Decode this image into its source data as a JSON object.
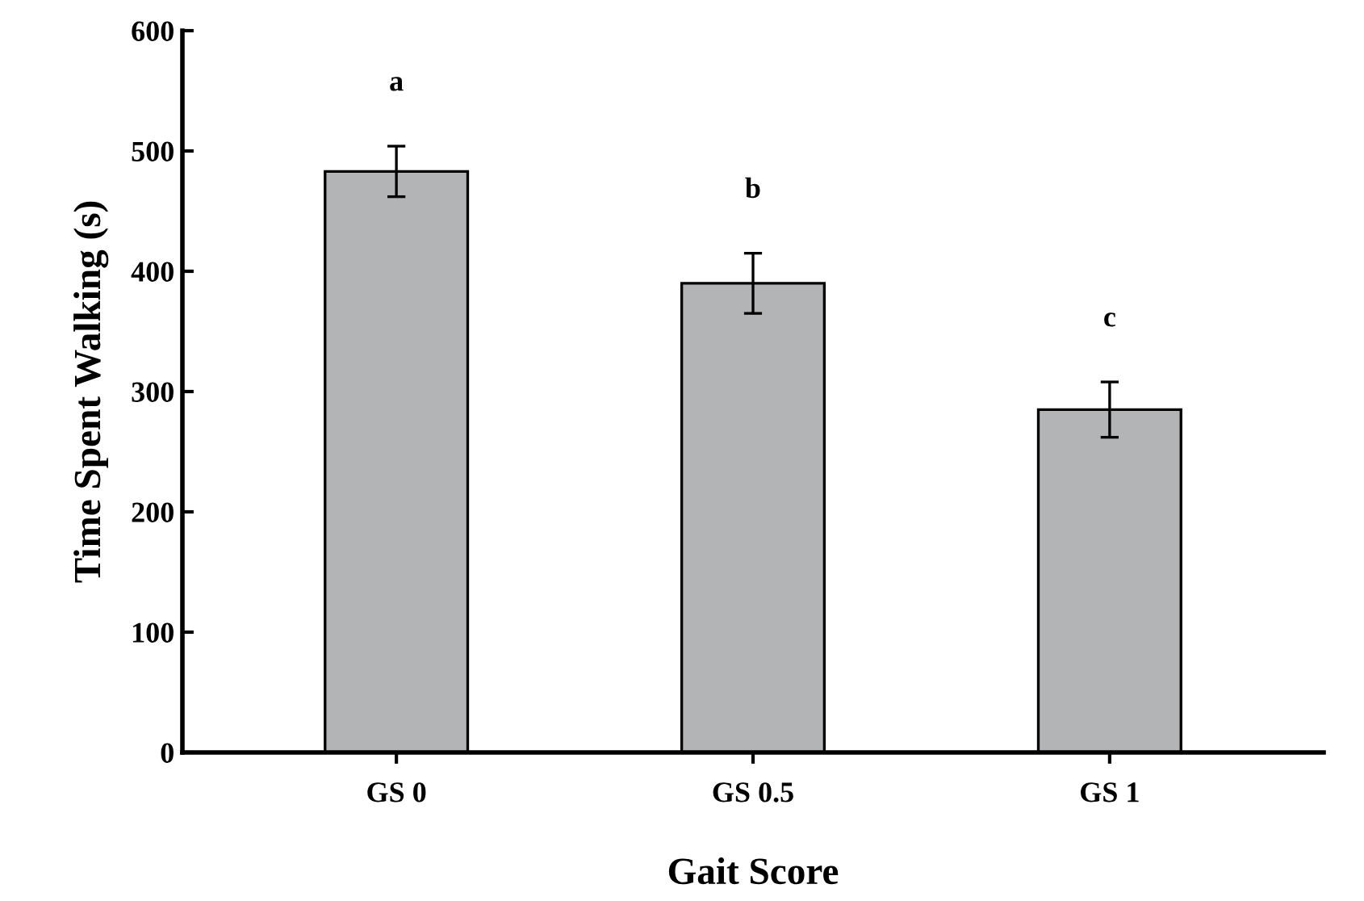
{
  "chart_data": {
    "type": "bar",
    "xlabel": "Gait Score",
    "ylabel": "Time Spent Walking (s)",
    "categories": [
      "GS 0",
      "GS 0.5",
      "GS 1"
    ],
    "values": [
      483,
      390,
      285
    ],
    "errors": [
      21,
      25,
      23
    ],
    "color": "#b3b4b6",
    "ylim": [
      0,
      600
    ],
    "yticks": [
      0,
      100,
      200,
      300,
      400,
      500,
      600
    ],
    "grid": false,
    "legend": false,
    "annotations": [
      "a",
      "b",
      "c"
    ]
  }
}
